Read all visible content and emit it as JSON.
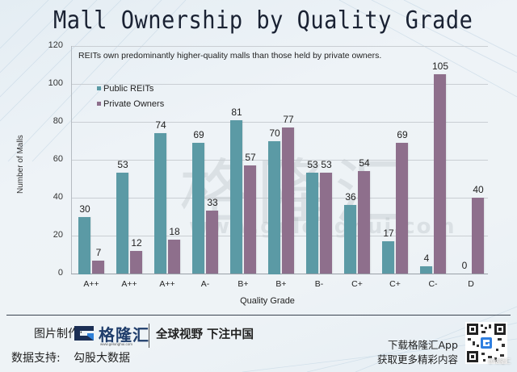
{
  "title": "Mall Ownership by Quality Grade",
  "chart_data": {
    "type": "bar",
    "title": "Mall Ownership by Quality Grade",
    "annotation": "REITs own predominantly higher-quality malls than those held by private owners.",
    "xlabel": "Quality Grade",
    "ylabel": "Number of Malls",
    "ylim": [
      0,
      120
    ],
    "yticks": [
      0,
      20,
      40,
      60,
      80,
      100,
      120
    ],
    "grid": true,
    "legend_position": "upper-left",
    "categories": [
      "A++",
      "A++",
      "A++",
      "A-",
      "B+",
      "B+",
      "B-",
      "C+",
      "C+",
      "C-",
      "D"
    ],
    "series": [
      {
        "name": "Public REITs",
        "color": "#5b9aa5",
        "values": [
          30,
          53,
          74,
          69,
          81,
          70,
          53,
          36,
          17,
          4,
          0
        ]
      },
      {
        "name": "Private Owners",
        "color": "#8e6f8c",
        "values": [
          7,
          12,
          18,
          33,
          57,
          77,
          53,
          54,
          69,
          105,
          40
        ]
      }
    ]
  },
  "watermark": {
    "text": "格隆汇",
    "url": "www.gelonghui.com"
  },
  "footer": {
    "made_by_label": "图片制作:",
    "logo_name": "格隆汇",
    "logo_url": "www.gelonghui.com",
    "slogan": "全球视野 下注中国",
    "data_support_label": "数据支持:",
    "data_support_value": "勾股大数据",
    "download_line1": "下载格隆汇App",
    "download_line2": "获取更多精彩内容",
    "qr_credit": "@格隆汇"
  }
}
